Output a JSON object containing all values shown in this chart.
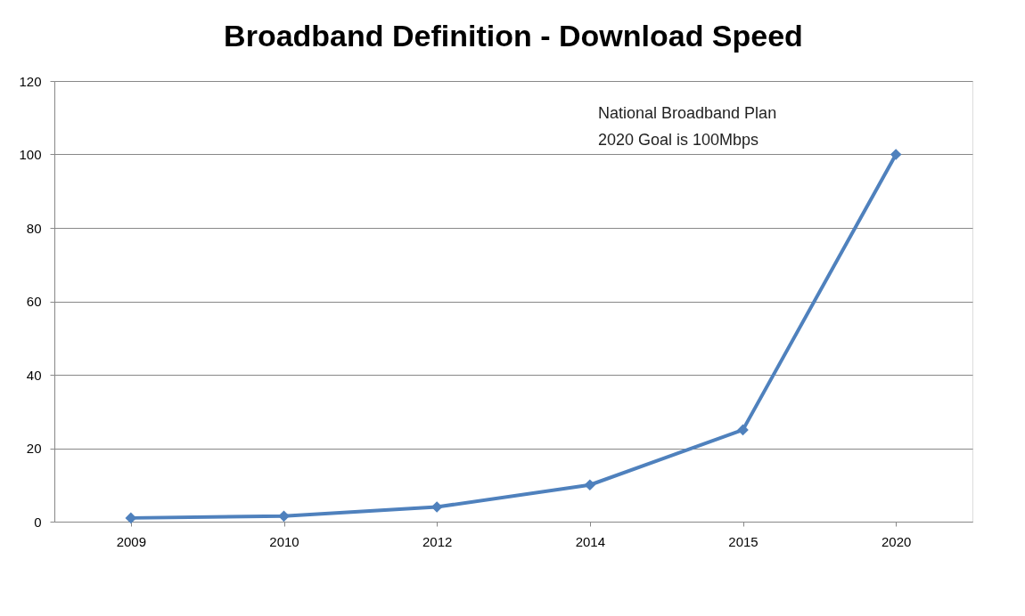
{
  "chart_data": {
    "type": "line",
    "title": "Broadband Definition - Download Speed",
    "categories": [
      "2009",
      "2010",
      "2012",
      "2014",
      "2015",
      "2020"
    ],
    "values": [
      1,
      1.5,
      4,
      10,
      25,
      100
    ],
    "color": "#4f81bd",
    "ylim": [
      0,
      120
    ],
    "yticks": [
      0,
      20,
      40,
      60,
      80,
      100,
      120
    ],
    "grid": "y",
    "marker": "diamond",
    "line_style": "solid",
    "annotations": [
      "National Broadband Plan\n2020  Goal is 100Mbps"
    ]
  }
}
